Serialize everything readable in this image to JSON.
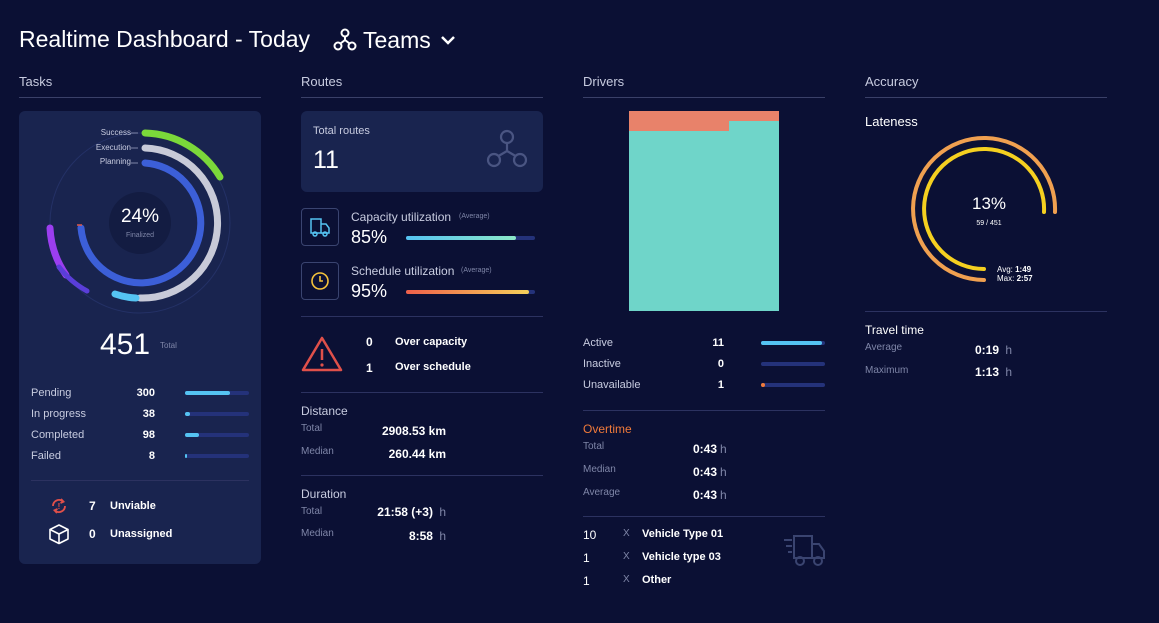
{
  "header": {
    "title": "Realtime Dashboard - Today",
    "team_label": "Teams"
  },
  "tasks": {
    "section_title": "Tasks",
    "ring_labels": [
      "Success",
      "Execution",
      "Planning"
    ],
    "center_percent": "24%",
    "center_caption": "Finalized",
    "total_value": "451",
    "total_caption": "Total",
    "stats": [
      {
        "label": "Pending",
        "value": "300",
        "fraction": 0.7,
        "color": "#55c3f2"
      },
      {
        "label": "In progress",
        "value": "38",
        "fraction": 0.08,
        "color": "#55c3f2"
      },
      {
        "label": "Completed",
        "value": "98",
        "fraction": 0.22,
        "color": "#55c3f2"
      },
      {
        "label": "Failed",
        "value": "8",
        "fraction": 0.02,
        "color": "#55c3f2"
      }
    ],
    "unviable": {
      "value": "7",
      "label": "Unviable"
    },
    "unassigned": {
      "value": "0",
      "label": "Unassigned"
    }
  },
  "routes": {
    "section_title": "Routes",
    "total_label": "Total routes",
    "total_value": "11",
    "capacity": {
      "label": "Capacity utilization",
      "hint": "(Average)",
      "value": "85%",
      "fraction": 0.85
    },
    "schedule": {
      "label": "Schedule utilization",
      "hint": "(Average)",
      "value": "95%",
      "fraction": 0.95
    },
    "over_capacity": {
      "value": "0",
      "label": "Over capacity"
    },
    "over_schedule": {
      "value": "1",
      "label": "Over schedule"
    },
    "distance": {
      "title": "Distance",
      "total_label": "Total",
      "total_value": "2908.53 km",
      "median_label": "Median",
      "median_value": "260.44 km"
    },
    "duration": {
      "title": "Duration",
      "total_label": "Total",
      "total_value": "21:58 (+3)",
      "median_label": "Median",
      "median_value": "8:58",
      "unit": "h"
    }
  },
  "drivers": {
    "section_title": "Drivers",
    "chart_colors": {
      "top": "#e8826a",
      "main": "#6fd5c9"
    },
    "status": [
      {
        "label": "Active",
        "value": "11",
        "fraction": 0.95,
        "color": "#55c3f2"
      },
      {
        "label": "Inactive",
        "value": "0",
        "fraction": 0.0,
        "color": "#55c3f2"
      },
      {
        "label": "Unavailable",
        "value": "1",
        "fraction": 0.05,
        "color": "#f07a3a"
      }
    ],
    "overtime": {
      "title": "Overtime",
      "rows": [
        {
          "label": "Total",
          "value": "0:43"
        },
        {
          "label": "Median",
          "value": "0:43"
        },
        {
          "label": "Average",
          "value": "0:43"
        }
      ],
      "unit": "h"
    },
    "vehicles": [
      {
        "count": "10",
        "x": "X",
        "name": "Vehicle Type 01"
      },
      {
        "count": "1",
        "x": "X",
        "name": "Vehicle type 03"
      },
      {
        "count": "1",
        "x": "X",
        "name": "Other"
      }
    ]
  },
  "accuracy": {
    "section_title": "Accuracy",
    "lateness_title": "Lateness",
    "percent": "13%",
    "ratio": "59 / 451",
    "avg_label": "Avg:",
    "avg_value": "1:49",
    "max_label": "Max:",
    "max_value": "2:57",
    "travel_title": "Travel time",
    "travel_rows": [
      {
        "label": "Average",
        "value": "0:19"
      },
      {
        "label": "Maximum",
        "value": "1:13"
      }
    ],
    "unit": "h"
  }
}
